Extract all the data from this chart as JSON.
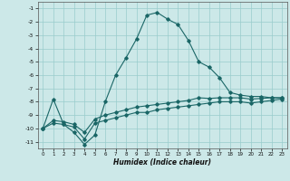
{
  "xlabel": "Humidex (Indice chaleur)",
  "ylabel": "",
  "background_color": "#cce8e8",
  "grid_color": "#99cccc",
  "line_color": "#1a6666",
  "xlim": [
    -0.5,
    23.5
  ],
  "ylim": [
    -11.5,
    -0.5
  ],
  "yticks": [
    -11,
    -10,
    -9,
    -8,
    -7,
    -6,
    -5,
    -4,
    -3,
    -2,
    -1
  ],
  "xticks": [
    0,
    1,
    2,
    3,
    4,
    5,
    6,
    7,
    8,
    9,
    10,
    11,
    12,
    13,
    14,
    15,
    16,
    17,
    18,
    19,
    20,
    21,
    22,
    23
  ],
  "curve1_x": [
    0,
    1,
    2,
    3,
    4,
    5,
    6,
    7,
    8,
    9,
    10,
    11,
    12,
    13,
    14,
    15,
    16,
    17,
    18,
    19,
    20,
    21,
    22,
    23
  ],
  "curve1_y": [
    -10.0,
    -7.8,
    -9.7,
    -10.3,
    -11.2,
    -10.5,
    -8.0,
    -6.0,
    -4.7,
    -3.3,
    -1.5,
    -1.3,
    -1.8,
    -2.2,
    -3.4,
    -5.0,
    -5.4,
    -6.2,
    -7.3,
    -7.5,
    -7.6,
    -7.6,
    -7.7,
    -7.7
  ],
  "curve2_x": [
    0,
    1,
    2,
    3,
    4,
    5,
    6,
    7,
    8,
    9,
    10,
    11,
    12,
    13,
    14,
    15,
    16,
    17,
    18,
    19,
    20,
    21,
    22,
    23
  ],
  "curve2_y": [
    -10.0,
    -9.4,
    -9.5,
    -9.7,
    -10.3,
    -9.3,
    -9.0,
    -8.8,
    -8.6,
    -8.4,
    -8.3,
    -8.2,
    -8.1,
    -8.0,
    -7.9,
    -7.7,
    -7.75,
    -7.7,
    -7.7,
    -7.7,
    -7.8,
    -7.75,
    -7.7,
    -7.7
  ],
  "curve3_x": [
    0,
    1,
    2,
    3,
    4,
    5,
    6,
    7,
    8,
    9,
    10,
    11,
    12,
    13,
    14,
    15,
    16,
    17,
    18,
    19,
    20,
    21,
    22,
    23
  ],
  "curve3_y": [
    -10.0,
    -9.6,
    -9.7,
    -9.9,
    -10.8,
    -9.6,
    -9.4,
    -9.2,
    -9.0,
    -8.8,
    -8.8,
    -8.6,
    -8.5,
    -8.4,
    -8.3,
    -8.2,
    -8.1,
    -8.0,
    -8.0,
    -8.0,
    -8.1,
    -8.0,
    -7.9,
    -7.8
  ]
}
